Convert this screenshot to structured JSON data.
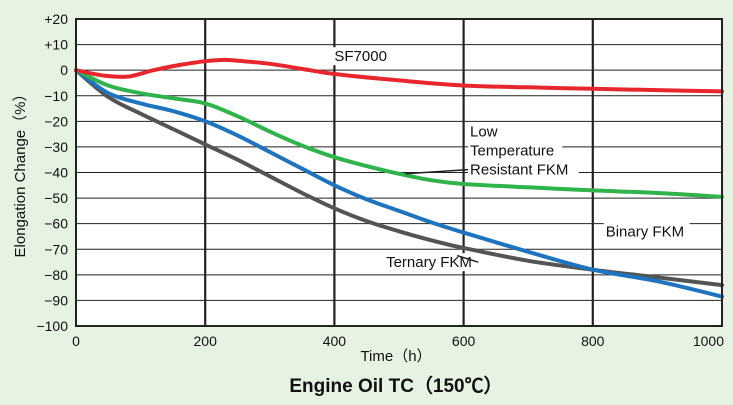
{
  "chart_data": {
    "type": "line",
    "title": "Engine Oil TC（150℃）",
    "xlabel": "Time（h）",
    "ylabel": "Elongation Change（%）",
    "xlim": [
      0,
      1000
    ],
    "ylim": [
      -100,
      20
    ],
    "x_ticks": [
      0,
      200,
      400,
      600,
      800,
      1000
    ],
    "x_tick_labels": [
      "0",
      "200",
      "400",
      "600",
      "800",
      "1000"
    ],
    "y_ticks": [
      20,
      10,
      0,
      -10,
      -20,
      -30,
      -40,
      -50,
      -60,
      -70,
      -80,
      -90,
      -100
    ],
    "y_tick_labels": [
      "+20",
      "+10",
      "0",
      "−10",
      "−20",
      "−30",
      "−40",
      "−50",
      "−60",
      "−70",
      "−80",
      "−90",
      "−100"
    ],
    "grid": true,
    "series": [
      {
        "name": "SF7000",
        "label_lines": [
          "SF7000"
        ],
        "color": "#e8262d",
        "x": [
          0,
          40,
          80,
          120,
          160,
          200,
          230,
          260,
          300,
          350,
          400,
          500,
          600,
          700,
          800,
          900,
          1000
        ],
        "y": [
          0,
          -2,
          -2.5,
          0,
          2,
          3.5,
          4,
          3.5,
          2.5,
          0.5,
          -1.5,
          -4,
          -6,
          -6.7,
          -7.3,
          -7.8,
          -8.3
        ]
      },
      {
        "name": "Low Temperature Resistant FKM",
        "label_lines": [
          "Low",
          "Temperature",
          "Resistant FKM"
        ],
        "color": "#2fb34a",
        "x": [
          0,
          50,
          100,
          150,
          200,
          250,
          300,
          350,
          400,
          450,
          500,
          550,
          600,
          700,
          800,
          900,
          1000
        ],
        "y": [
          0,
          -6,
          -9,
          -11,
          -13,
          -18,
          -24,
          -29.5,
          -34,
          -37.5,
          -40.5,
          -43,
          -44.5,
          -45.8,
          -47,
          -48,
          -49.5
        ]
      },
      {
        "name": "Binary FKM",
        "label_lines": [
          "Binary FKM"
        ],
        "color": "#1f74bf",
        "x": [
          0,
          50,
          100,
          150,
          200,
          250,
          300,
          350,
          400,
          450,
          500,
          550,
          600,
          700,
          800,
          900,
          1000
        ],
        "y": [
          0,
          -9,
          -13,
          -16,
          -20,
          -25.5,
          -32,
          -38.5,
          -45,
          -50.5,
          -55,
          -59.5,
          -63.5,
          -71,
          -78,
          -82.5,
          -88.5
        ]
      },
      {
        "name": "Ternary FKM",
        "label_lines": [
          "Ternary FKM"
        ],
        "color": "#545454",
        "x": [
          0,
          50,
          100,
          150,
          200,
          250,
          300,
          350,
          400,
          450,
          500,
          550,
          600,
          700,
          800,
          900,
          1000
        ],
        "y": [
          0,
          -10.5,
          -17,
          -23,
          -29,
          -35,
          -41.5,
          -48,
          -54,
          -59,
          -63,
          -66.5,
          -69.5,
          -74.5,
          -78,
          -81,
          -84
        ]
      }
    ],
    "annotation_anchor_data": [
      {
        "series": "SF7000",
        "x": 400,
        "y": 3.5,
        "leader": false
      },
      {
        "series": "Low Temperature Resistant FKM",
        "x": 610,
        "y": -26,
        "leader": true,
        "leader_from": [
          510,
          -40.5
        ]
      },
      {
        "series": "Binary FKM",
        "x": 820,
        "y": -65,
        "leader": false
      },
      {
        "series": "Ternary FKM",
        "x": 480,
        "y": -77,
        "leader": true,
        "leader_from": [
          590,
          -72.5
        ]
      }
    ]
  }
}
